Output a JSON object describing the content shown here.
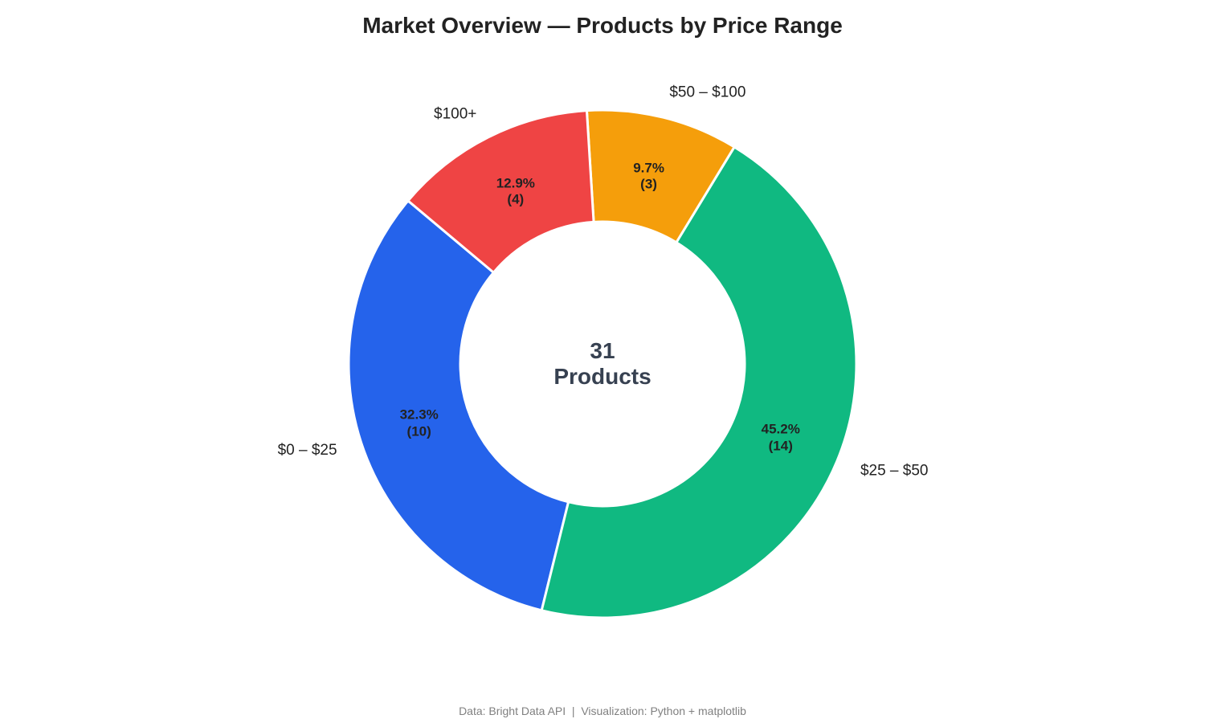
{
  "chart_data": {
    "type": "donut",
    "title": "Market Overview — Products by Price Range",
    "categories": [
      "$0 – $25",
      "$25 – $50",
      "$50 – $100",
      "$100+"
    ],
    "values": [
      10,
      14,
      3,
      4
    ],
    "value_labels": [
      "32.3%\n(10)",
      "45.2%\n(14)",
      "9.7%\n(3)",
      "12.9%\n(4)"
    ],
    "colors": [
      "#2563eb",
      "#10b981",
      "#f59e0b",
      "#ef4444"
    ],
    "start_angle": 140,
    "center_label": "31\nProducts",
    "footnote": "Data: Bright Data API  |  Visualization: Python + matplotlib"
  }
}
